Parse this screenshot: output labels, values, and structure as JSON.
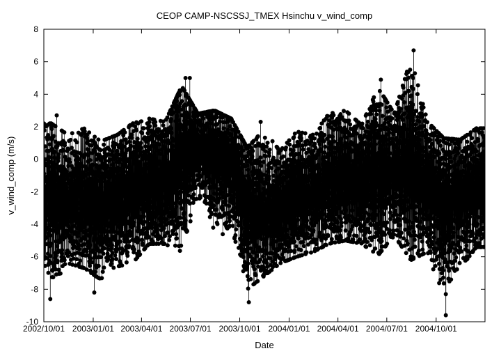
{
  "chart_data": {
    "type": "scatter",
    "title": "CEOP CAMP-NSCSSJ_TMEX Hsinchu  v_wind_comp",
    "xlabel": "Date",
    "ylabel": "v_wind_comp (m/s)",
    "xlim": [
      "2002-10-01",
      "2004-12-31"
    ],
    "ylim": [
      -10,
      8
    ],
    "y_ticks": [
      -10,
      -8,
      -6,
      -4,
      -2,
      0,
      2,
      4,
      6,
      8
    ],
    "x_ticks": [
      "2002/10/01",
      "2003/01/01",
      "2003/04/01",
      "2003/07/01",
      "2003/10/01",
      "2004/01/01",
      "2004/04/01",
      "2004/07/01",
      "2004/10/01"
    ],
    "grid": false,
    "legend": "none",
    "marker_color": "#000000",
    "series": [
      {
        "name": "",
        "monthly_profile": [
          {
            "month": "2002-10",
            "center": -2.2,
            "low": -8.6,
            "high": 2.7
          },
          {
            "month": "2002-11",
            "center": -2.5,
            "low": -7.2,
            "high": 2.0
          },
          {
            "month": "2002-12",
            "center": -2.4,
            "low": -7.5,
            "high": 2.4
          },
          {
            "month": "2003-01",
            "center": -2.6,
            "low": -8.2,
            "high": 1.6
          },
          {
            "month": "2003-02",
            "center": -2.3,
            "low": -7.4,
            "high": 2.0
          },
          {
            "month": "2003-03",
            "center": -2.0,
            "low": -7.2,
            "high": 2.7
          },
          {
            "month": "2003-04",
            "center": -1.6,
            "low": -6.0,
            "high": 3.0
          },
          {
            "month": "2003-05",
            "center": -1.4,
            "low": -6.0,
            "high": 2.8
          },
          {
            "month": "2003-06",
            "center": 0.8,
            "low": -7.0,
            "high": 5.0
          },
          {
            "month": "2003-07",
            "center": 1.0,
            "low": -3.0,
            "high": 3.3
          },
          {
            "month": "2003-08",
            "center": 0.5,
            "low": -5.5,
            "high": 3.5
          },
          {
            "month": "2003-09",
            "center": 0.2,
            "low": -6.0,
            "high": 3.0
          },
          {
            "month": "2003-10",
            "center": -2.8,
            "low": -8.8,
            "high": 1.2
          },
          {
            "month": "2003-11",
            "center": -3.2,
            "low": -8.0,
            "high": 2.3
          },
          {
            "month": "2003-12",
            "center": -2.8,
            "low": -7.2,
            "high": 1.0
          },
          {
            "month": "2004-01",
            "center": -2.4,
            "low": -6.8,
            "high": 2.2
          },
          {
            "month": "2004-02",
            "center": -2.2,
            "low": -6.5,
            "high": 2.0
          },
          {
            "month": "2004-03",
            "center": -1.5,
            "low": -6.0,
            "high": 3.3
          },
          {
            "month": "2004-04",
            "center": -1.3,
            "low": -5.8,
            "high": 3.5
          },
          {
            "month": "2004-05",
            "center": -1.2,
            "low": -6.0,
            "high": 2.6
          },
          {
            "month": "2004-06",
            "center": -0.8,
            "low": -6.7,
            "high": 4.9
          },
          {
            "month": "2004-07",
            "center": -0.5,
            "low": -5.5,
            "high": 3.3
          },
          {
            "month": "2004-08",
            "center": -0.7,
            "low": -7.0,
            "high": 6.7
          },
          {
            "month": "2004-09",
            "center": -1.5,
            "low": -6.5,
            "high": 2.8
          },
          {
            "month": "2004-10",
            "center": -2.2,
            "low": -9.6,
            "high": 1.8
          },
          {
            "month": "2004-11",
            "center": -2.0,
            "low": -7.5,
            "high": 1.7
          },
          {
            "month": "2004-12",
            "center": -1.8,
            "low": -6.2,
            "high": 2.4
          }
        ],
        "notable_points": [
          {
            "x": "2002-10-13",
            "y": -8.6
          },
          {
            "x": "2002-10-25",
            "y": 2.7
          },
          {
            "x": "2003-01-03",
            "y": -8.2
          },
          {
            "x": "2003-06-22",
            "y": 5.0
          },
          {
            "x": "2003-06-30",
            "y": 5.0
          },
          {
            "x": "2003-10-18",
            "y": -8.8
          },
          {
            "x": "2003-11-09",
            "y": 2.3
          },
          {
            "x": "2004-06-20",
            "y": 4.9
          },
          {
            "x": "2004-08-20",
            "y": 6.7
          },
          {
            "x": "2004-08-19",
            "y": 5.0
          },
          {
            "x": "2004-10-19",
            "y": -9.6
          },
          {
            "x": "2004-10-19",
            "y": -8.3
          }
        ]
      }
    ]
  }
}
